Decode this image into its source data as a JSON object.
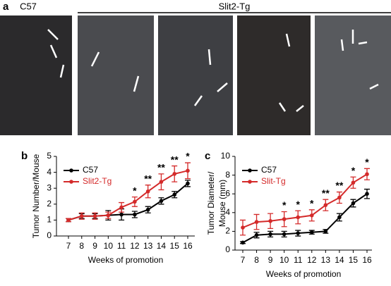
{
  "panels": {
    "a": "a",
    "b": "b",
    "c": "c"
  },
  "header": {
    "left": "C57",
    "right": "Slit2-Tg"
  },
  "chart_data": [
    {
      "type": "line",
      "ylabel": [
        "Tumor Number/Mouse"
      ],
      "xlabel": "Weeks of promotion",
      "categories": [
        "7",
        "8",
        "9",
        "10",
        "11",
        "12",
        "13",
        "14",
        "15",
        "16"
      ],
      "ylim": [
        0,
        5
      ],
      "yticks": [
        0,
        1,
        2,
        3,
        4,
        5
      ],
      "series": [
        {
          "name": "C57",
          "color": "#000000",
          "values": [
            1.0,
            1.25,
            1.25,
            1.3,
            1.35,
            1.35,
            1.65,
            2.2,
            2.6,
            3.3
          ],
          "errors": [
            0.1,
            0.15,
            0.15,
            0.3,
            0.35,
            0.2,
            0.2,
            0.2,
            0.2,
            0.2
          ]
        },
        {
          "name": "Slit2-Tg",
          "color": "#d42a2a",
          "values": [
            1.0,
            1.25,
            1.25,
            1.3,
            1.8,
            2.15,
            2.8,
            3.4,
            3.9,
            4.1
          ],
          "errors": [
            0.1,
            0.2,
            0.2,
            0.2,
            0.3,
            0.3,
            0.4,
            0.5,
            0.5,
            0.5
          ]
        }
      ],
      "significance": [
        null,
        null,
        null,
        null,
        null,
        "*",
        "**",
        "**",
        "**",
        "*"
      ]
    },
    {
      "type": "line",
      "ylabel": [
        "Tumor Diameter/",
        "Mouse (mm)"
      ],
      "xlabel": "Weeks of promotion",
      "categories": [
        "7",
        "8",
        "9",
        "10",
        "11",
        "12",
        "13",
        "14",
        "15",
        "16"
      ],
      "ylim": [
        0,
        10
      ],
      "yticks": [
        0,
        2,
        4,
        6,
        8,
        10
      ],
      "series": [
        {
          "name": "C57",
          "color": "#000000",
          "values": [
            0.8,
            1.6,
            1.7,
            1.7,
            1.8,
            1.9,
            2.0,
            3.5,
            5.0,
            6.0
          ],
          "errors": [
            0.1,
            0.3,
            0.3,
            0.3,
            0.3,
            0.2,
            0.2,
            0.4,
            0.4,
            0.5
          ]
        },
        {
          "name": "Slit-Tg",
          "color": "#d42a2a",
          "values": [
            2.4,
            3.0,
            3.1,
            3.3,
            3.5,
            3.7,
            4.8,
            5.6,
            7.2,
            8.1
          ],
          "errors": [
            0.8,
            0.8,
            0.8,
            0.8,
            0.7,
            0.6,
            0.6,
            0.6,
            0.6,
            0.6
          ]
        }
      ],
      "significance": [
        null,
        null,
        null,
        "*",
        "*",
        "*",
        "**",
        "**",
        "*",
        "*"
      ]
    }
  ]
}
